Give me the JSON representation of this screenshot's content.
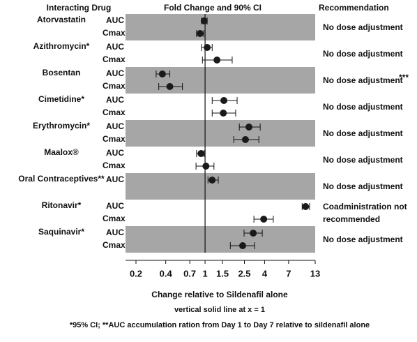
{
  "chart_data": {
    "type": "forest",
    "headers": {
      "drug": "Interacting Drug",
      "plot": "Fold Change and 90% CI",
      "recommendation": "Recommendation"
    },
    "log_x": true,
    "xlim": [
      0.2,
      13
    ],
    "xticks": [
      0.2,
      0.4,
      0.7,
      1,
      1.5,
      2.5,
      4,
      7,
      13
    ],
    "reference_line": 1,
    "band_color": "#a6a6a6",
    "marker_color": "#1a1a1a",
    "xlabel": "Change relative to Sildenafil alone",
    "reference_note": "vertical solid line at x = 1",
    "footnote": "*95% CI; **AUC accumulation ration from Day 1 to Day 7 relative to sildenafil alone",
    "groups": [
      {
        "name": "Atorvastatin",
        "recommendation": [
          "No dose adjustment"
        ],
        "rows": [
          {
            "param": "AUC",
            "value": 0.98,
            "ci": [
              0.92,
              1.05
            ]
          },
          {
            "param": "Cmax",
            "value": 0.89,
            "ci": [
              0.82,
              0.97
            ]
          }
        ]
      },
      {
        "name": "Azithromycin*",
        "recommendation": [
          "No dose adjustment"
        ],
        "rows": [
          {
            "param": "AUC",
            "value": 1.05,
            "ci": [
              0.92,
              1.18
            ]
          },
          {
            "param": "Cmax",
            "value": 1.32,
            "ci": [
              0.94,
              1.88
            ]
          }
        ]
      },
      {
        "name": "Bosentan",
        "recommendation": [
          "No dose adjustment"
        ],
        "note": "***",
        "rows": [
          {
            "param": "AUC",
            "value": 0.37,
            "ci": [
              0.32,
              0.44
            ]
          },
          {
            "param": "Cmax",
            "value": 0.44,
            "ci": [
              0.34,
              0.59
            ]
          }
        ]
      },
      {
        "name": "Cimetidine*",
        "recommendation": [
          "No dose adjustment"
        ],
        "rows": [
          {
            "param": "AUC",
            "value": 1.55,
            "ci": [
              1.18,
              2.11
            ]
          },
          {
            "param": "Cmax",
            "value": 1.53,
            "ci": [
              1.18,
              2.04
            ]
          }
        ]
      },
      {
        "name": "Erythromycin*",
        "recommendation": [
          "No dose adjustment"
        ],
        "rows": [
          {
            "param": "AUC",
            "value": 2.78,
            "ci": [
              2.22,
              3.61
            ]
          },
          {
            "param": "Cmax",
            "value": 2.56,
            "ci": [
              1.95,
              3.5
            ]
          }
        ]
      },
      {
        "name": "Maalox®",
        "recommendation": [
          "No dose adjustment"
        ],
        "rows": [
          {
            "param": "AUC",
            "value": 0.91,
            "ci": [
              0.82,
              0.98
            ]
          },
          {
            "param": "Cmax",
            "value": 1.02,
            "ci": [
              0.81,
              1.23
            ]
          }
        ]
      },
      {
        "name": "Oral Contraceptives**",
        "recommendation": [
          "No dose adjustment"
        ],
        "rows": [
          {
            "param": "AUC",
            "value": 1.18,
            "ci": [
              1.07,
              1.36
            ]
          }
        ]
      },
      {
        "name": "Ritonavir*",
        "recommendation": [
          "Coadministration not",
          "recommended"
        ],
        "rows": [
          {
            "param": "AUC",
            "value": 10.4,
            "ci": [
              9.6,
              11.4
            ]
          },
          {
            "param": "Cmax",
            "value": 3.92,
            "ci": [
              3.12,
              4.9
            ]
          }
        ]
      },
      {
        "name": "Saquinavir*",
        "recommendation": [
          "No dose adjustment"
        ],
        "rows": [
          {
            "param": "AUC",
            "value": 3.07,
            "ci": [
              2.48,
              3.79
            ]
          },
          {
            "param": "Cmax",
            "value": 2.4,
            "ci": [
              1.8,
              3.17
            ]
          }
        ]
      }
    ]
  }
}
